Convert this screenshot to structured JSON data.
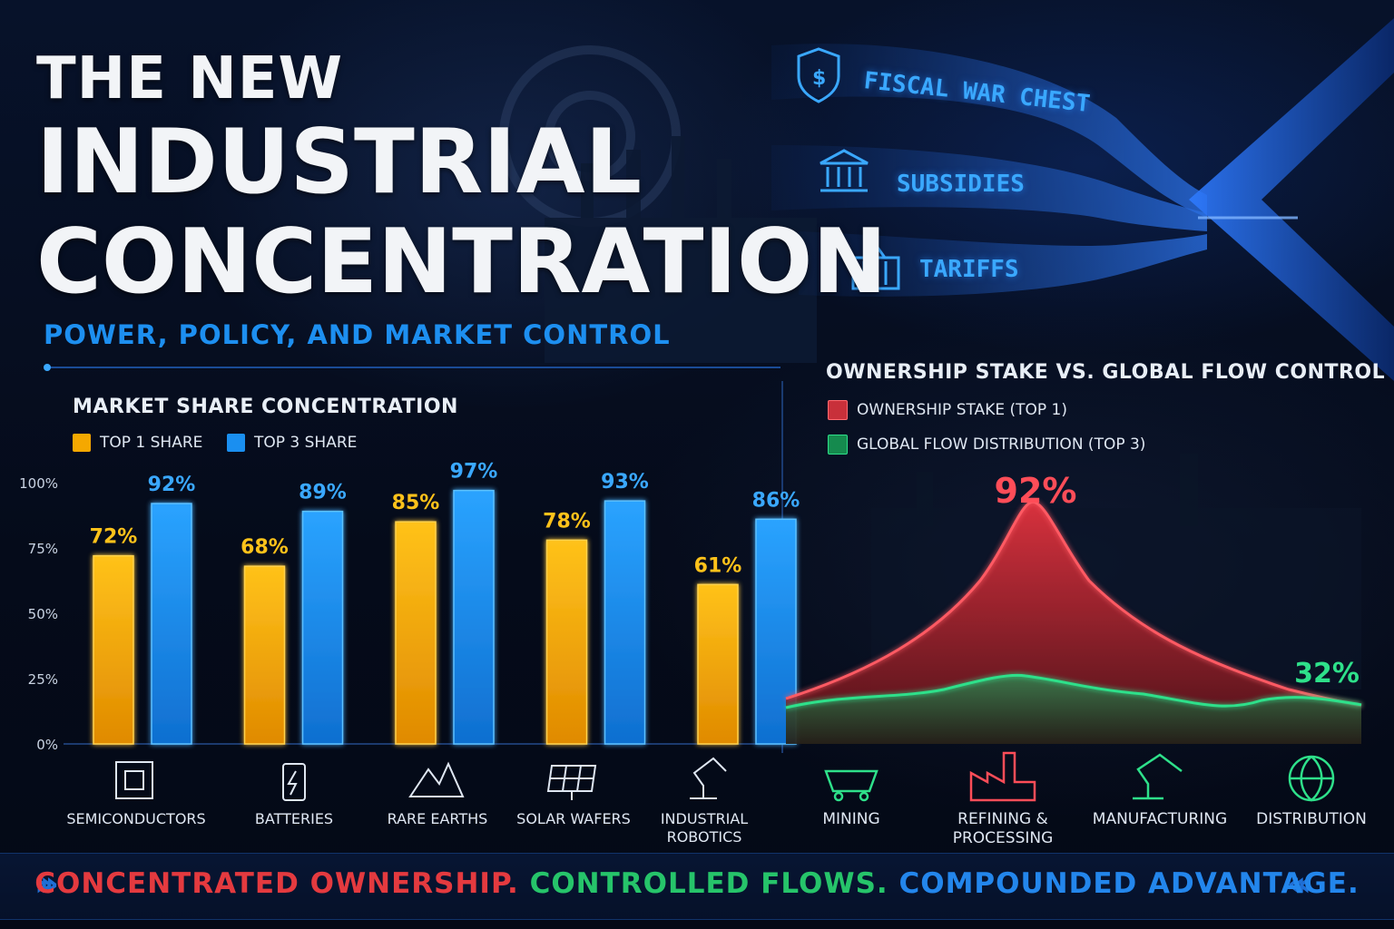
{
  "header": {
    "title_line1": "THE NEW",
    "title_line2": "INDUSTRIAL",
    "title_line3": "CONCENTRATION",
    "subtitle": "POWER, POLICY, AND MARKET CONTROL"
  },
  "policy_flows": [
    {
      "label": "FISCAL WAR CHEST",
      "icon": "dollar-shield-icon"
    },
    {
      "label": "SUBSIDIES",
      "icon": "bank-building-icon"
    },
    {
      "label": "TARIFFS",
      "icon": "shipping-container-icon"
    }
  ],
  "chart_data": [
    {
      "type": "bar",
      "title": "MARKET SHARE CONCENTRATION",
      "categories": [
        "SEMICONDUCTORS",
        "BATTERIES",
        "RARE EARTHS",
        "SOLAR WAFERS",
        "INDUSTRIAL ROBOTICS"
      ],
      "category_icons": [
        "chip-icon",
        "battery-icon",
        "mountain-icon",
        "solar-panel-icon",
        "robot-arm-icon"
      ],
      "series": [
        {
          "name": "TOP 1 SHARE",
          "values": [
            72,
            68,
            85,
            78,
            61
          ],
          "labels": [
            "72%",
            "68%",
            "85%",
            "78%",
            "61%"
          ],
          "color": "#f5a800"
        },
        {
          "name": "TOP 3 SHARE",
          "values": [
            92,
            89,
            97,
            93,
            86
          ],
          "labels": [
            "92%",
            "89%",
            "97%",
            "93%",
            "86%"
          ],
          "color": "#1a8ff0"
        }
      ],
      "y_ticks": [
        "0%",
        "25%",
        "50%",
        "75%",
        "100%"
      ],
      "ylim": [
        0,
        100
      ],
      "legend": "top-left",
      "grid": false
    },
    {
      "type": "area",
      "title": "OWNERSHIP STAKE VS. GLOBAL FLOW CONTROL",
      "categories": [
        "MINING",
        "REFINING & PROCESSING",
        "MANUFACTURING",
        "DISTRIBUTION"
      ],
      "category_icons": [
        "mine-cart-icon",
        "factory-icon",
        "robot-arm-icon",
        "globe-icon"
      ],
      "series": [
        {
          "name": "OWNERSHIP STAKE (TOP 1)",
          "color": "#e0333d",
          "peak_label": "92%",
          "peak_value": 92
        },
        {
          "name": "GLOBAL FLOW DISTRIBUTION (TOP 3)",
          "color": "#22d47a",
          "end_label": "32%",
          "end_value": 32
        }
      ],
      "legend": "top-left",
      "grid": false
    }
  ],
  "footer": {
    "part1": "CONCENTRATED OWNERSHIP.",
    "part2": "CONTROLLED FLOWS.",
    "part3": "COMPOUNDED ADVANTAGE."
  },
  "colors": {
    "accent_blue": "#1a8ff0",
    "accent_gold": "#f5a800",
    "accent_red": "#e0333d",
    "accent_green": "#22d47a",
    "background": "#050c1c"
  }
}
